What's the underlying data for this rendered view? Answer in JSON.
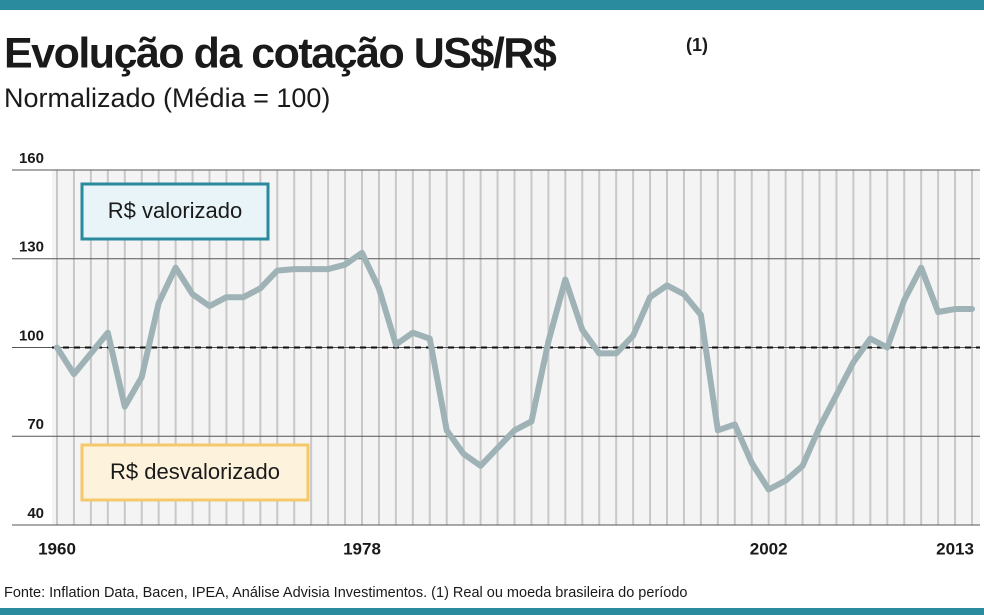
{
  "chart_data": {
    "type": "line",
    "title": "Evolução da cotação US$/R$",
    "title_note": "(1)",
    "subtitle": "Normalizado (Média = 100)",
    "x": [
      1960,
      1961,
      1962,
      1963,
      1964,
      1965,
      1966,
      1967,
      1968,
      1969,
      1970,
      1971,
      1972,
      1973,
      1974,
      1975,
      1976,
      1977,
      1978,
      1979,
      1980,
      1981,
      1982,
      1983,
      1984,
      1985,
      1986,
      1987,
      1988,
      1989,
      1990,
      1991,
      1992,
      1993,
      1994,
      1995,
      1996,
      1997,
      1998,
      1999,
      2000,
      2001,
      2002,
      2003,
      2004,
      2005,
      2006,
      2007,
      2008,
      2009,
      2010,
      2011,
      2012,
      2013,
      2014
    ],
    "series": [
      {
        "name": "Cotação US$/R$",
        "color": "#9fb3b6",
        "values": [
          100,
          91,
          98,
          105,
          80,
          90,
          115,
          127,
          118,
          114,
          117,
          117,
          120,
          126,
          126.5,
          126.5,
          126.5,
          128,
          132,
          120,
          101,
          105,
          103,
          72,
          64,
          60,
          66,
          72,
          75,
          102,
          123,
          106,
          98,
          98,
          104,
          117,
          121,
          118,
          111,
          72,
          74,
          61,
          52,
          55,
          60,
          73,
          84,
          95,
          103,
          100,
          116,
          127,
          112,
          113,
          113
        ]
      }
    ],
    "xlim": [
      1960,
      2014
    ],
    "xticks": [
      1960,
      1978,
      2002,
      2013
    ],
    "ylim": [
      40,
      160
    ],
    "yticks": [
      40,
      70,
      100,
      130,
      160
    ],
    "reference": 100,
    "grid": true,
    "annotations": [
      "R$ valorizado",
      "R$ desvalorizado"
    ],
    "source": "Fonte: Inflation Data, Bacen, IPEA, Análise Advisia Investimentos. (1) Real ou moeda brasileira do período"
  }
}
